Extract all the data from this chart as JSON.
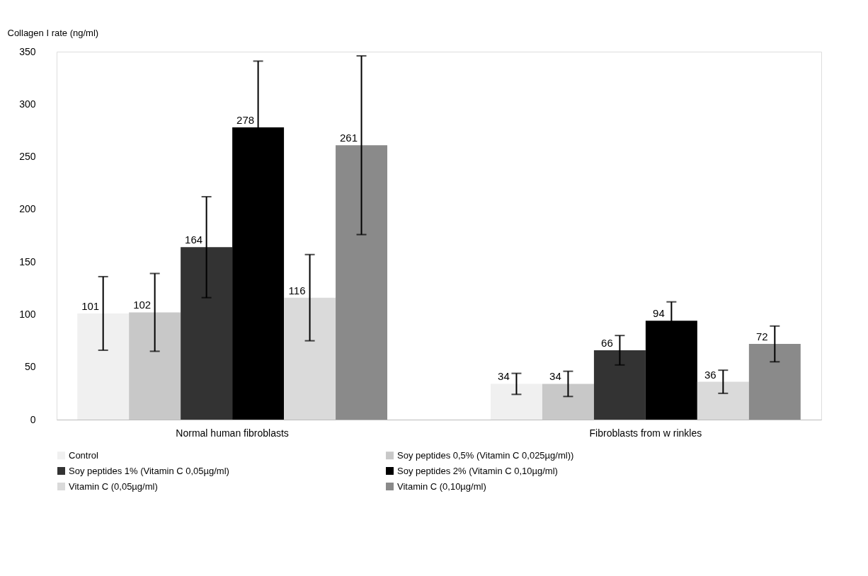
{
  "chart_data": {
    "type": "bar",
    "ylabel": "Collagen I rate (ng/ml)",
    "categories": [
      "Normal human fibroblasts",
      "Fibroblasts from w rinkles"
    ],
    "series": [
      {
        "name": "Control",
        "color": "#f0f0f0",
        "values": [
          101,
          34
        ],
        "errors": [
          35,
          10
        ]
      },
      {
        "name": "Soy peptides 0,5% (Vitamin C 0,025µg/ml))",
        "color": "#c8c8c8",
        "values": [
          102,
          34
        ],
        "errors": [
          37,
          12
        ]
      },
      {
        "name": "Soy peptides 1% (Vitamin C 0,05µg/ml)",
        "color": "#333333",
        "values": [
          164,
          66
        ],
        "errors": [
          48,
          14
        ]
      },
      {
        "name": "Soy peptides 2% (Vitamin C 0,10µg/ml)",
        "color": "#000000",
        "values": [
          278,
          94
        ],
        "errors": [
          63,
          18
        ]
      },
      {
        "name": "Vitamin C (0,05µg/ml)",
        "color": "#dadada",
        "values": [
          116,
          36
        ],
        "errors": [
          41,
          11
        ]
      },
      {
        "name": "Vitamin C (0,10µg/ml)",
        "color": "#8a8a8a",
        "values": [
          261,
          72
        ],
        "errors": [
          85,
          17
        ]
      }
    ],
    "ylim": [
      0,
      350
    ],
    "yticks": [
      0,
      50,
      100,
      150,
      200,
      250,
      300,
      350
    ],
    "data_labels": true,
    "grid": false,
    "legend": "bottom"
  }
}
